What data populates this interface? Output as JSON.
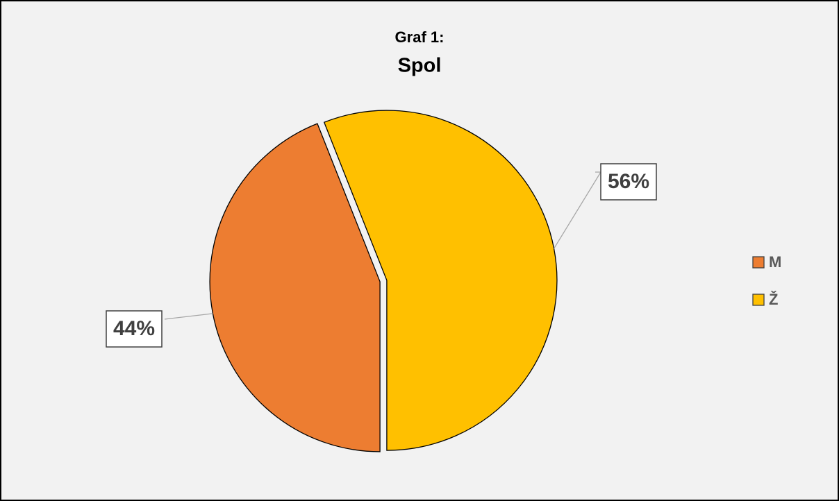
{
  "chart_data": {
    "type": "pie",
    "title": "Graf 1:",
    "subtitle": "Spol",
    "categories": [
      "M",
      "Ž"
    ],
    "values": [
      44,
      56
    ],
    "value_labels": [
      "44%",
      "56%"
    ],
    "colors": [
      "#ED7D31",
      "#FFC000"
    ],
    "legend": "right"
  }
}
